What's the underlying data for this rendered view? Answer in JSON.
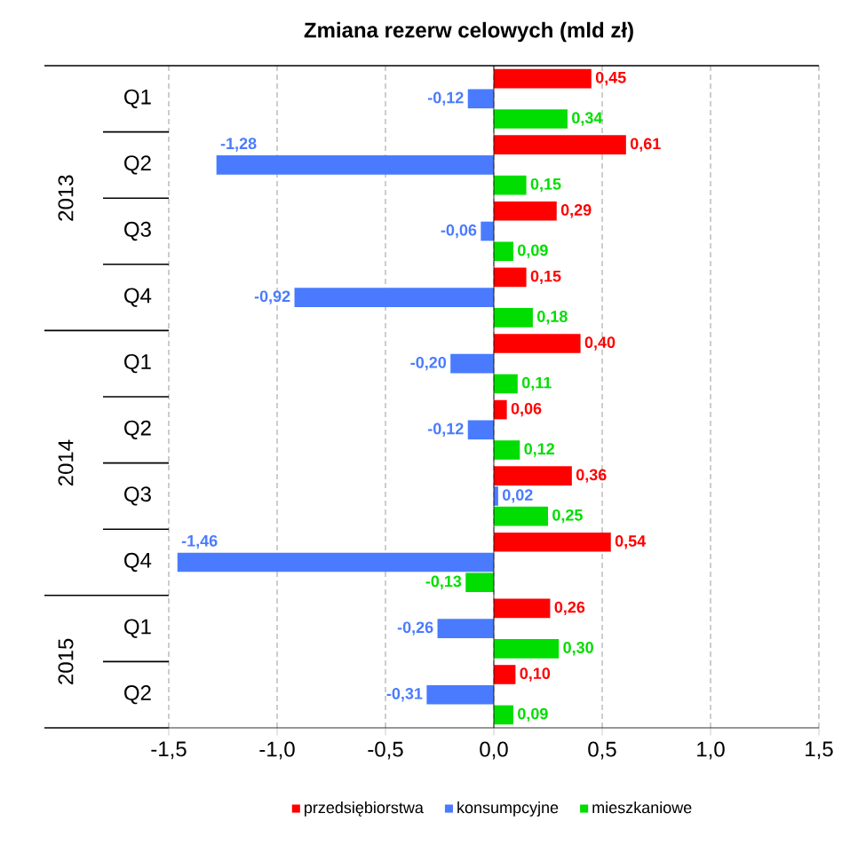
{
  "chart_data": {
    "type": "bar",
    "orientation": "horizontal",
    "title": "Zmiana rezerw celowych (mld zł)",
    "categories": [
      "Q1",
      "Q2",
      "Q3",
      "Q4",
      "Q1",
      "Q2",
      "Q3",
      "Q4",
      "Q1",
      "Q2"
    ],
    "annotations": [
      "2013",
      "2014",
      "2015"
    ],
    "series": [
      {
        "name": "przedsiębiorstwa",
        "color": "#ff0000",
        "values": [
          0.45,
          0.61,
          0.29,
          0.15,
          0.4,
          0.06,
          0.36,
          0.54,
          0.26,
          0.1
        ],
        "value_labels": [
          "0,45",
          "0,61",
          "0,29",
          "0,15",
          "0,40",
          "0,06",
          "0,36",
          "0,54",
          "0,26",
          "0,10"
        ]
      },
      {
        "name": "konsumpcyjne",
        "color": "#4a7bff",
        "values": [
          -0.12,
          -1.28,
          -0.06,
          -0.92,
          -0.2,
          -0.12,
          0.02,
          -1.46,
          -0.26,
          -0.31
        ],
        "value_labels": [
          "-0,12",
          "-1,28",
          "-0,06",
          "-0,92",
          "-0,20",
          "-0,12",
          "0,02",
          "-1,46",
          "-0,26",
          "-0,31"
        ]
      },
      {
        "name": "mieszkaniowe",
        "color": "#00dd00",
        "values": [
          0.34,
          0.15,
          0.09,
          0.18,
          0.11,
          0.12,
          0.25,
          -0.13,
          0.3,
          0.09
        ],
        "value_labels": [
          "0,34",
          "0,15",
          "0,09",
          "0,18",
          "0,11",
          "0,12",
          "0,25",
          "-0,13",
          "0,30",
          "0,09"
        ]
      }
    ],
    "xlim": [
      -1.5,
      1.5
    ],
    "xticks": [
      {
        "value": -1.5,
        "label": "-1,5"
      },
      {
        "value": -1.0,
        "label": "-1,0"
      },
      {
        "value": -0.5,
        "label": "-0,5"
      },
      {
        "value": 0,
        "label": "0,0"
      },
      {
        "value": 0.5,
        "label": "0,5"
      },
      {
        "value": 1.0,
        "label": "1,0"
      },
      {
        "value": 1.5,
        "label": "1,5"
      }
    ],
    "legend": "bottom",
    "grid": "x"
  }
}
